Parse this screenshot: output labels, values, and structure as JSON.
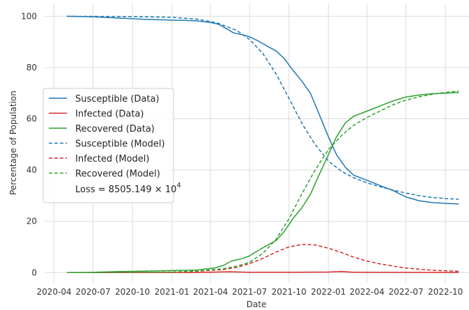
{
  "chart_data": {
    "type": "line",
    "xlabel": "Date",
    "ylabel": "Percentage of Population",
    "x_ticks": [
      "2020-04",
      "2020-07",
      "2020-10",
      "2021-01",
      "2021-04",
      "2021-07",
      "2021-10",
      "2022-01",
      "2022-04",
      "2022-07",
      "2022-10"
    ],
    "y_ticks": [
      0,
      20,
      40,
      60,
      80,
      100
    ],
    "xlim": [
      "2020-03-10",
      "2022-11-25"
    ],
    "ylim": [
      -4,
      105
    ],
    "grid": true,
    "legend_position": "center-left",
    "annotation": {
      "prefix": "Loss = 8505.149 × 10",
      "exponent": "4"
    },
    "series": [
      {
        "name": "Susceptible (Data)",
        "color": "#1f77b4",
        "style": "solid",
        "points": [
          [
            "2020-05-01",
            100
          ],
          [
            "2020-07-01",
            99.8
          ],
          [
            "2020-09-01",
            99.3
          ],
          [
            "2020-11-01",
            98.8
          ],
          [
            "2021-01-01",
            98.5
          ],
          [
            "2021-02-01",
            98.4
          ],
          [
            "2021-03-01",
            98.2
          ],
          [
            "2021-04-01",
            97.6
          ],
          [
            "2021-04-20",
            96.9
          ],
          [
            "2021-05-10",
            95.0
          ],
          [
            "2021-05-25",
            93.5
          ],
          [
            "2021-06-15",
            92.8
          ],
          [
            "2021-07-01",
            92.0
          ],
          [
            "2021-07-20",
            90.5
          ],
          [
            "2021-08-15",
            88.0
          ],
          [
            "2021-09-01",
            86.5
          ],
          [
            "2021-09-20",
            83.5
          ],
          [
            "2021-10-10",
            79.0
          ],
          [
            "2021-11-01",
            74.5
          ],
          [
            "2021-11-20",
            70.0
          ],
          [
            "2021-12-10",
            62.0
          ],
          [
            "2022-01-01",
            53.0
          ],
          [
            "2022-01-20",
            46.0
          ],
          [
            "2022-02-10",
            41.0
          ],
          [
            "2022-03-01",
            38.0
          ],
          [
            "2022-04-01",
            36.0
          ],
          [
            "2022-05-01",
            34.0
          ],
          [
            "2022-06-01",
            32.0
          ],
          [
            "2022-07-01",
            29.5
          ],
          [
            "2022-08-01",
            28.0
          ],
          [
            "2022-09-01",
            27.3
          ],
          [
            "2022-10-01",
            27.0
          ],
          [
            "2022-11-01",
            26.8
          ]
        ]
      },
      {
        "name": "Infected (Data)",
        "color": "#d62728",
        "style": "solid",
        "points": [
          [
            "2020-05-01",
            0
          ],
          [
            "2021-03-01",
            0.05
          ],
          [
            "2021-05-15",
            0.3
          ],
          [
            "2021-07-01",
            0.1
          ],
          [
            "2021-10-01",
            0.1
          ],
          [
            "2022-01-01",
            0.2
          ],
          [
            "2022-02-01",
            0.4
          ],
          [
            "2022-03-01",
            0.1
          ],
          [
            "2022-11-01",
            0.05
          ]
        ]
      },
      {
        "name": "Recovered (Data)",
        "color": "#2ca02c",
        "style": "solid",
        "points": [
          [
            "2020-05-01",
            0
          ],
          [
            "2020-07-01",
            0.1
          ],
          [
            "2020-09-01",
            0.4
          ],
          [
            "2020-11-01",
            0.6
          ],
          [
            "2021-01-01",
            0.8
          ],
          [
            "2021-03-01",
            1.0
          ],
          [
            "2021-04-10",
            1.8
          ],
          [
            "2021-05-01",
            2.8
          ],
          [
            "2021-05-20",
            4.5
          ],
          [
            "2021-06-15",
            5.5
          ],
          [
            "2021-07-01",
            6.5
          ],
          [
            "2021-07-20",
            8.5
          ],
          [
            "2021-08-10",
            10.5
          ],
          [
            "2021-09-01",
            12.5
          ],
          [
            "2021-09-20",
            16.0
          ],
          [
            "2021-10-10",
            21.0
          ],
          [
            "2021-11-01",
            25.5
          ],
          [
            "2021-11-20",
            30.5
          ],
          [
            "2021-12-10",
            38.0
          ],
          [
            "2022-01-01",
            46.0
          ],
          [
            "2022-01-20",
            53.0
          ],
          [
            "2022-02-10",
            58.5
          ],
          [
            "2022-03-01",
            61.0
          ],
          [
            "2022-04-01",
            63.0
          ],
          [
            "2022-05-01",
            65.0
          ],
          [
            "2022-06-01",
            67.0
          ],
          [
            "2022-07-01",
            68.5
          ],
          [
            "2022-08-01",
            69.3
          ],
          [
            "2022-09-01",
            69.8
          ],
          [
            "2022-10-01",
            70.0
          ],
          [
            "2022-11-01",
            70.3
          ]
        ]
      },
      {
        "name": "Susceptible (Model)",
        "color": "#1f77b4",
        "style": "dashed",
        "points": [
          [
            "2020-05-01",
            100
          ],
          [
            "2020-10-01",
            99.9
          ],
          [
            "2021-01-01",
            99.6
          ],
          [
            "2021-03-01",
            98.9
          ],
          [
            "2021-04-15",
            97.5
          ],
          [
            "2021-06-01",
            94.5
          ],
          [
            "2021-07-01",
            91.0
          ],
          [
            "2021-08-01",
            85.5
          ],
          [
            "2021-09-01",
            77.5
          ],
          [
            "2021-10-01",
            68.0
          ],
          [
            "2021-11-01",
            58.0
          ],
          [
            "2021-12-01",
            50.0
          ],
          [
            "2022-01-01",
            43.5
          ],
          [
            "2022-02-01",
            39.5
          ],
          [
            "2022-03-01",
            37.0
          ],
          [
            "2022-04-01",
            35.0
          ],
          [
            "2022-05-01",
            33.5
          ],
          [
            "2022-06-01",
            32.2
          ],
          [
            "2022-07-01",
            31.0
          ],
          [
            "2022-08-01",
            30.0
          ],
          [
            "2022-09-01",
            29.3
          ],
          [
            "2022-10-01",
            28.9
          ],
          [
            "2022-11-01",
            28.6
          ]
        ]
      },
      {
        "name": "Infected (Model)",
        "color": "#d62728",
        "style": "dashed",
        "points": [
          [
            "2020-05-01",
            0
          ],
          [
            "2020-10-01",
            0.05
          ],
          [
            "2021-01-01",
            0.2
          ],
          [
            "2021-03-01",
            0.5
          ],
          [
            "2021-05-01",
            1.2
          ],
          [
            "2021-06-01",
            2.0
          ],
          [
            "2021-07-01",
            3.5
          ],
          [
            "2021-08-01",
            5.5
          ],
          [
            "2021-09-01",
            8.0
          ],
          [
            "2021-10-01",
            10.0
          ],
          [
            "2021-11-01",
            11.0
          ],
          [
            "2021-12-01",
            10.8
          ],
          [
            "2022-01-01",
            9.5
          ],
          [
            "2022-02-01",
            7.8
          ],
          [
            "2022-03-01",
            6.0
          ],
          [
            "2022-04-01",
            4.5
          ],
          [
            "2022-05-01",
            3.4
          ],
          [
            "2022-06-01",
            2.5
          ],
          [
            "2022-07-01",
            1.8
          ],
          [
            "2022-08-01",
            1.3
          ],
          [
            "2022-09-01",
            0.9
          ],
          [
            "2022-11-01",
            0.5
          ]
        ]
      },
      {
        "name": "Recovered (Model)",
        "color": "#2ca02c",
        "style": "dashed",
        "points": [
          [
            "2020-05-01",
            0
          ],
          [
            "2020-10-01",
            0.05
          ],
          [
            "2021-01-01",
            0.2
          ],
          [
            "2021-03-01",
            0.6
          ],
          [
            "2021-05-01",
            1.5
          ],
          [
            "2021-06-01",
            2.5
          ],
          [
            "2021-07-01",
            4.0
          ],
          [
            "2021-08-01",
            7.5
          ],
          [
            "2021-09-01",
            13.0
          ],
          [
            "2021-10-01",
            21.0
          ],
          [
            "2021-11-01",
            31.0
          ],
          [
            "2021-12-01",
            40.0
          ],
          [
            "2022-01-01",
            48.0
          ],
          [
            "2022-02-01",
            53.5
          ],
          [
            "2022-03-01",
            57.5
          ],
          [
            "2022-04-01",
            60.5
          ],
          [
            "2022-05-01",
            63.0
          ],
          [
            "2022-06-01",
            65.5
          ],
          [
            "2022-07-01",
            67.3
          ],
          [
            "2022-08-01",
            68.6
          ],
          [
            "2022-09-01",
            69.6
          ],
          [
            "2022-10-01",
            70.3
          ],
          [
            "2022-11-01",
            70.8
          ]
        ]
      }
    ]
  }
}
